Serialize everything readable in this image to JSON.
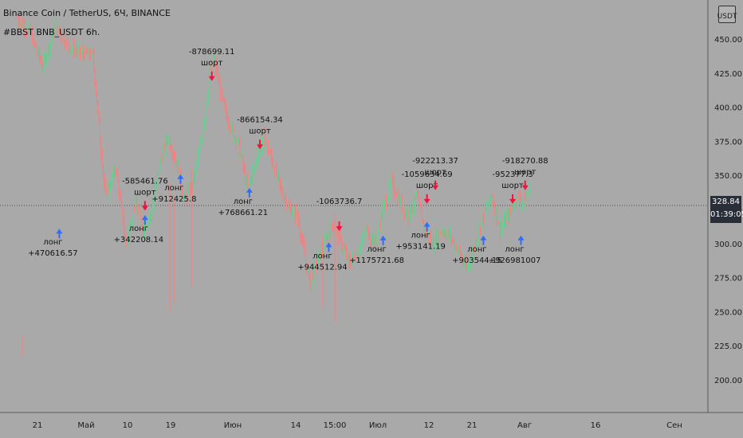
{
  "header": {
    "line1": "Binance Coin / TetherUS, 6Ч, BINANCE",
    "line2": "#BBST BNB_USDT 6h."
  },
  "currency_button": "USDT",
  "price_badge": {
    "price": "328.84",
    "countdown": "01:39:05"
  },
  "colors": {
    "background": "#a9a9a9",
    "bull": "#5fd38f",
    "bear": "#ff7a7a",
    "long_arrow": "#2f6dff",
    "short_arrow": "#f0143c",
    "axis_text": "#1a1a1a",
    "signal_text": "#111111"
  },
  "chart_data": {
    "type": "candlestick",
    "title": "Binance Coin / TetherUS, 6Ч, BINANCE",
    "ylim": [
      175,
      470
    ],
    "y_ticks": [
      "450.00",
      "425.00",
      "400.00",
      "375.00",
      "350.00",
      "325.00",
      "300.00",
      "275.00",
      "250.00",
      "225.00",
      "200.00"
    ],
    "x_ticks": [
      "21",
      "Май",
      "10",
      "19",
      "Июн",
      "14",
      "15:00",
      "Июл",
      "12",
      "21",
      "Авг",
      "16",
      "Сен"
    ],
    "series": [
      {
        "d": 0,
        "p": 465
      },
      {
        "d": 6,
        "p": 455
      },
      {
        "d": 12,
        "p": 430
      },
      {
        "d": 18,
        "p": 460
      },
      {
        "d": 24,
        "p": 445
      },
      {
        "d": 30,
        "p": 440
      },
      {
        "d": 36,
        "p": 438
      },
      {
        "d": 42,
        "p": 335
      },
      {
        "d": 47,
        "p": 355
      },
      {
        "d": 52,
        "p": 300
      },
      {
        "d": 56,
        "p": 330
      },
      {
        "d": 60,
        "p": 312
      },
      {
        "d": 64,
        "p": 320
      },
      {
        "d": 68,
        "p": 360
      },
      {
        "d": 72,
        "p": 378
      },
      {
        "d": 76,
        "p": 360
      },
      {
        "d": 80,
        "p": 330
      },
      {
        "d": 84,
        "p": 345
      },
      {
        "d": 88,
        "p": 375
      },
      {
        "d": 92,
        "p": 425
      },
      {
        "d": 94,
        "p": 435
      },
      {
        "d": 98,
        "p": 405
      },
      {
        "d": 102,
        "p": 385
      },
      {
        "d": 106,
        "p": 372
      },
      {
        "d": 110,
        "p": 340
      },
      {
        "d": 114,
        "p": 360
      },
      {
        "d": 118,
        "p": 378
      },
      {
        "d": 122,
        "p": 360
      },
      {
        "d": 126,
        "p": 340
      },
      {
        "d": 130,
        "p": 325
      },
      {
        "d": 134,
        "p": 320
      },
      {
        "d": 137,
        "p": 295
      },
      {
        "d": 140,
        "p": 270
      },
      {
        "d": 143,
        "p": 285
      },
      {
        "d": 147,
        "p": 300
      },
      {
        "d": 151,
        "p": 315
      },
      {
        "d": 155,
        "p": 300
      },
      {
        "d": 159,
        "p": 285
      },
      {
        "d": 163,
        "p": 295
      },
      {
        "d": 167,
        "p": 310
      },
      {
        "d": 171,
        "p": 300
      },
      {
        "d": 175,
        "p": 325
      },
      {
        "d": 179,
        "p": 345
      },
      {
        "d": 183,
        "p": 330
      },
      {
        "d": 187,
        "p": 320
      },
      {
        "d": 191,
        "p": 335
      },
      {
        "d": 195,
        "p": 310
      },
      {
        "d": 199,
        "p": 300
      },
      {
        "d": 203,
        "p": 310
      },
      {
        "d": 207,
        "p": 305
      },
      {
        "d": 211,
        "p": 295
      },
      {
        "d": 215,
        "p": 280
      },
      {
        "d": 219,
        "p": 300
      },
      {
        "d": 223,
        "p": 320
      },
      {
        "d": 227,
        "p": 335
      },
      {
        "d": 231,
        "p": 310
      },
      {
        "d": 235,
        "p": 320
      },
      {
        "d": 239,
        "p": 335
      },
      {
        "d": 242,
        "p": 330
      },
      {
        "d": 245,
        "p": 340
      }
    ],
    "signals": [
      {
        "type": "long",
        "d": 20,
        "p": 305,
        "labels": [
          "лонг",
          "+470616.57"
        ]
      },
      {
        "type": "short",
        "d": 61,
        "p": 330,
        "labels": [
          "-585461.76",
          "шорт"
        ]
      },
      {
        "type": "long",
        "d": 61,
        "p": 315,
        "labels": [
          "лонг",
          "+342208.14"
        ]
      },
      {
        "type": "long",
        "d": 78,
        "p": 345,
        "labels": [
          "лонг",
          "+912425.8"
        ]
      },
      {
        "type": "short",
        "d": 93,
        "p": 425,
        "labels": [
          "-878699.11",
          "шорт"
        ]
      },
      {
        "type": "short",
        "d": 116,
        "p": 375,
        "labels": [
          "-866154.34",
          "шорт"
        ]
      },
      {
        "type": "long",
        "d": 111,
        "p": 335,
        "labels": [
          "лонг",
          "+768661.21"
        ]
      },
      {
        "type": "short",
        "d": 154,
        "p": 315,
        "labels": [
          "-1063736.7"
        ]
      },
      {
        "type": "long",
        "d": 149,
        "p": 295,
        "labels": [
          "лонг",
          "+944512.94"
        ]
      },
      {
        "type": "long",
        "d": 175,
        "p": 300,
        "labels": [
          "лонг",
          "+1175721.68"
        ]
      },
      {
        "type": "short",
        "d": 196,
        "p": 335,
        "labels": [
          "-1059634.69",
          "шорт"
        ]
      },
      {
        "type": "short",
        "d": 200,
        "p": 345,
        "labels": [
          "-922213.37",
          "шорт"
        ]
      },
      {
        "type": "long",
        "d": 196,
        "p": 310,
        "labels": [
          "лонг",
          "+953141.19"
        ]
      },
      {
        "type": "long",
        "d": 223,
        "p": 300,
        "labels": [
          "лонг",
          "+903544.15"
        ]
      },
      {
        "type": "short",
        "d": 237,
        "p": 335,
        "labels": [
          "-952377.3",
          "шорт"
        ]
      },
      {
        "type": "short",
        "d": 243,
        "p": 345,
        "labels": [
          "-918270.88",
          "шорт"
        ]
      },
      {
        "type": "long",
        "d": 241,
        "p": 300,
        "labels": [
          "лонг",
          "+926981007"
        ]
      }
    ]
  }
}
